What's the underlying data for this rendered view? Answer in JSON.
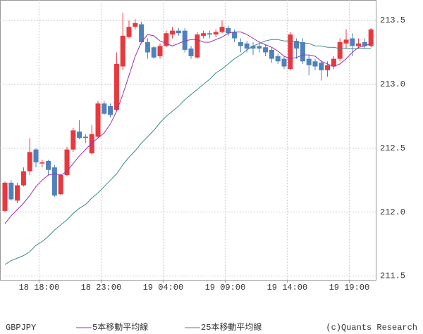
{
  "chart_data": {
    "type": "candlestick",
    "instrument": "GBPJPY",
    "copyright": "(c)Quants Research",
    "up_color": "#e8383d",
    "down_color": "#4f81bd",
    "ohlc": {
      "open": [
        212.01,
        212.23,
        212.09,
        212.21,
        212.32,
        212.49,
        212.38,
        212.4,
        212.35,
        212.14,
        212.29,
        212.49,
        212.63,
        212.59,
        212.46,
        212.59,
        212.85,
        212.83,
        212.8,
        213.14,
        213.37,
        213.45,
        213.47,
        213.33,
        213.29,
        213.22,
        213.3,
        213.39,
        213.42,
        213.42,
        213.28,
        213.21,
        213.38,
        213.4,
        213.39,
        213.41,
        213.44,
        213.41,
        213.33,
        213.32,
        213.3,
        213.3,
        213.29,
        213.27,
        213.22,
        213.2,
        213.12,
        213.34,
        213.33,
        213.2,
        213.18,
        213.17,
        213.11,
        213.14,
        213.2,
        213.32,
        213.36,
        213.3,
        213.33,
        213.3
      ],
      "high": [
        212.24,
        212.25,
        212.23,
        212.35,
        212.58,
        212.5,
        212.41,
        212.41,
        212.37,
        212.3,
        212.51,
        212.66,
        212.72,
        212.61,
        212.68,
        212.87,
        212.87,
        212.85,
        213.25,
        213.56,
        213.5,
        213.51,
        213.49,
        213.36,
        213.3,
        213.32,
        213.42,
        213.45,
        213.44,
        213.44,
        213.3,
        213.41,
        213.42,
        213.42,
        213.43,
        213.5,
        213.46,
        213.43,
        213.36,
        213.34,
        213.33,
        213.32,
        213.31,
        213.29,
        213.24,
        213.22,
        213.41,
        213.36,
        213.36,
        213.23,
        213.2,
        213.19,
        213.18,
        213.22,
        213.36,
        213.43,
        213.4,
        213.36,
        213.36,
        213.44
      ],
      "low": [
        212.0,
        212.09,
        212.07,
        212.2,
        212.29,
        212.35,
        212.35,
        212.29,
        212.12,
        212.13,
        212.28,
        212.47,
        212.57,
        212.54,
        212.45,
        212.58,
        212.76,
        212.74,
        212.79,
        213.11,
        213.36,
        213.43,
        213.32,
        213.2,
        213.2,
        213.2,
        213.29,
        213.36,
        213.38,
        213.25,
        213.2,
        213.2,
        213.36,
        213.36,
        213.37,
        213.4,
        213.38,
        213.33,
        213.25,
        213.25,
        213.23,
        213.25,
        213.22,
        213.17,
        213.16,
        213.12,
        213.11,
        213.2,
        213.16,
        213.07,
        213.11,
        213.03,
        213.06,
        213.12,
        213.18,
        213.28,
        213.22,
        213.28,
        213.28,
        213.29
      ],
      "close": [
        212.23,
        212.1,
        212.21,
        212.32,
        212.47,
        212.39,
        212.39,
        212.33,
        212.13,
        212.29,
        212.49,
        212.64,
        212.58,
        212.58,
        212.61,
        212.85,
        212.77,
        212.76,
        213.16,
        213.38,
        213.45,
        213.48,
        213.33,
        213.25,
        213.21,
        213.3,
        213.4,
        213.42,
        213.4,
        213.27,
        213.22,
        213.39,
        213.4,
        213.39,
        213.41,
        213.45,
        213.4,
        213.36,
        213.3,
        213.28,
        213.28,
        213.28,
        213.25,
        213.2,
        213.18,
        213.14,
        213.39,
        213.28,
        213.18,
        213.15,
        213.14,
        213.11,
        213.15,
        213.2,
        213.33,
        213.35,
        213.3,
        213.32,
        213.3,
        213.43
      ]
    },
    "series": [
      {
        "name": "5本移動平均線",
        "color": "#9b30b0",
        "values": [
          211.91,
          211.97,
          212.02,
          212.07,
          212.13,
          212.2,
          212.25,
          212.29,
          212.3,
          212.29,
          212.32,
          212.38,
          212.44,
          212.49,
          212.54,
          212.58,
          212.62,
          212.69,
          212.79,
          212.92,
          213.07,
          213.22,
          213.33,
          213.39,
          213.38,
          213.34,
          213.32,
          213.3,
          213.32,
          213.34,
          213.35,
          213.35,
          213.33,
          213.33,
          213.35,
          213.37,
          213.4,
          213.41,
          213.41,
          213.39,
          213.36,
          213.33,
          213.31,
          213.29,
          213.26,
          213.22,
          213.2,
          213.21,
          213.23,
          213.23,
          213.22,
          213.18,
          213.16,
          213.14,
          213.16,
          213.2,
          213.25,
          213.29,
          213.3,
          213.32
        ]
      },
      {
        "name": "25本移動平均線",
        "color": "#3d8a8a",
        "values": [
          211.59,
          211.62,
          211.64,
          211.66,
          211.69,
          211.74,
          211.77,
          211.81,
          211.86,
          211.9,
          211.94,
          211.99,
          212.03,
          212.06,
          212.11,
          212.15,
          212.2,
          212.25,
          212.3,
          212.37,
          212.43,
          212.48,
          212.54,
          212.59,
          212.64,
          212.7,
          212.75,
          212.79,
          212.83,
          212.88,
          212.92,
          212.96,
          213.0,
          213.04,
          213.09,
          213.12,
          213.16,
          213.2,
          213.23,
          213.27,
          213.3,
          213.32,
          213.34,
          213.35,
          213.35,
          213.34,
          213.34,
          213.33,
          213.32,
          213.32,
          213.3,
          213.3,
          213.29,
          213.29,
          213.28,
          213.28,
          213.28,
          213.28,
          213.28,
          213.28
        ]
      }
    ],
    "ylim": [
      211.47,
      213.66
    ],
    "yticks": [
      211.5,
      {
        "value": 212.0,
        "label": "212.0"
      },
      212.5,
      {
        "value": 213.0,
        "label": "213.0"
      },
      213.5
    ],
    "xticks": [
      {
        "value": 5.5,
        "label": "18 18:00"
      },
      {
        "value": 15.5,
        "label": "18 23:00"
      },
      {
        "value": 25.5,
        "label": "19 04:00"
      },
      {
        "value": 35.5,
        "label": "19 09:00"
      },
      {
        "value": 45.5,
        "label": "19 14:00"
      },
      {
        "value": 55.5,
        "label": "19 19:00"
      }
    ],
    "grid": true
  }
}
